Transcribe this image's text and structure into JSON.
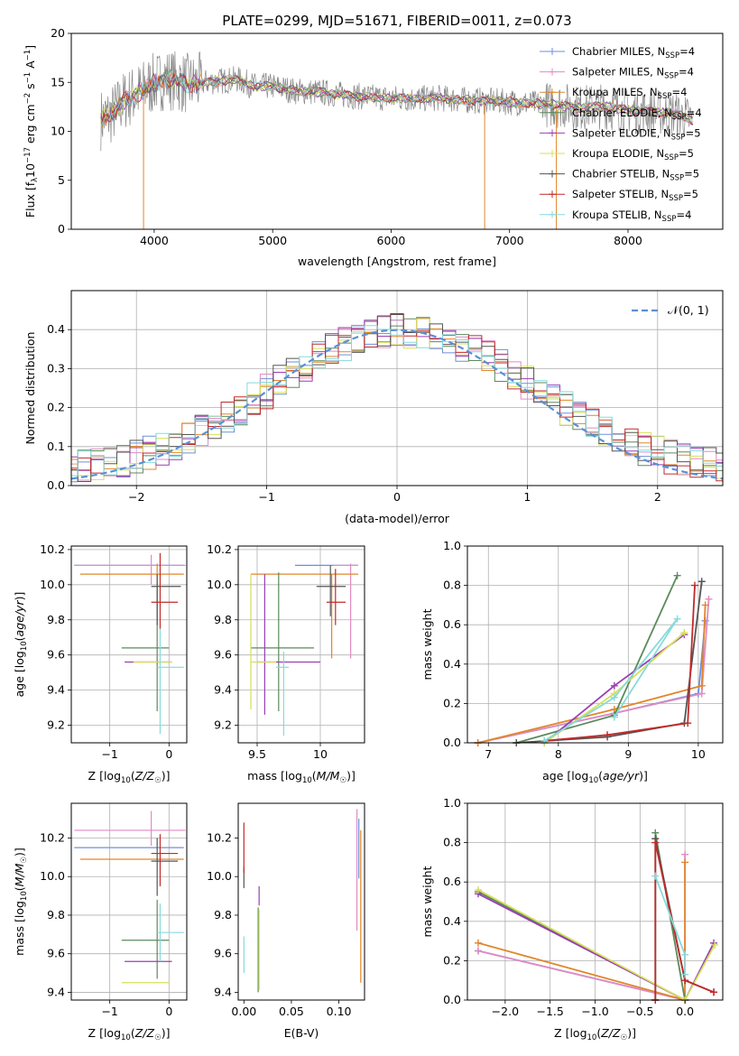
{
  "figure_title": "PLATE=0299, MJD=51671, FIBERID=0011, z=0.073",
  "colors": {
    "Chabrier MILES": "#6d8fdc",
    "Salpeter MILES": "#e28bc3",
    "Kroupa MILES": "#e0872a",
    "Chabrier ELODIE": "#5c8a5c",
    "Salpeter ELODIE": "#9b3fb3",
    "Kroupa ELODIE": "#d6e05a",
    "Chabrier STELIB": "#555555",
    "Salpeter STELIB": "#c12a2a",
    "Kroupa STELIB": "#86dadb",
    "gauss": "#5b8fd6",
    "grid": "#b0b0b0",
    "data": "#888888"
  },
  "chart_data": [
    {
      "id": "spectrum",
      "type": "line",
      "title": "PLATE=0299, MJD=51671, FIBERID=0011, z=0.073",
      "xlabel": "wavelength [Angstrom, rest frame]",
      "ylabel": "Flux [f_λ10^-17 erg cm^-2 s^-1 A^-1]",
      "xlim": [
        3300,
        8800
      ],
      "ylim": [
        0,
        20
      ],
      "xticks": [
        4000,
        5000,
        6000,
        7000,
        8000
      ],
      "yticks": [
        0,
        5,
        10,
        15,
        20
      ],
      "grid": false,
      "legend_position": "top-right",
      "legend": [
        {
          "name": "Chabrier MILES",
          "nssp": "4"
        },
        {
          "name": "Salpeter MILES",
          "nssp": "4"
        },
        {
          "name": "Kroupa MILES",
          "nssp": "4"
        },
        {
          "name": "Chabrier ELODIE",
          "nssp": "4"
        },
        {
          "name": "Salpeter ELODIE",
          "nssp": "5"
        },
        {
          "name": "Kroupa ELODIE",
          "nssp": "5"
        },
        {
          "name": "Chabrier STELIB",
          "nssp": "5"
        },
        {
          "name": "Salpeter STELIB",
          "nssp": "5"
        },
        {
          "name": "Kroupa STELIB",
          "nssp": "4"
        }
      ],
      "continuum": [
        [
          3550,
          11.2
        ],
        [
          3650,
          11.8
        ],
        [
          3750,
          13.2
        ],
        [
          3850,
          13.8
        ],
        [
          3950,
          14.6
        ],
        [
          4100,
          15.4
        ],
        [
          4300,
          14.8
        ],
        [
          4500,
          15.1
        ],
        [
          4700,
          15.3
        ],
        [
          4850,
          14.6
        ],
        [
          5000,
          14.6
        ],
        [
          5200,
          14.1
        ],
        [
          5400,
          14.0
        ],
        [
          5600,
          13.7
        ],
        [
          5800,
          13.5
        ],
        [
          6000,
          13.4
        ],
        [
          6200,
          13.3
        ],
        [
          6400,
          13.4
        ],
        [
          6600,
          13.2
        ],
        [
          6800,
          13.1
        ],
        [
          7000,
          13.0
        ],
        [
          7200,
          12.8
        ],
        [
          7400,
          12.7
        ],
        [
          7600,
          12.4
        ],
        [
          7800,
          12.6
        ],
        [
          8000,
          12.1
        ],
        [
          8200,
          12.0
        ],
        [
          8400,
          11.8
        ],
        [
          8550,
          11.1
        ]
      ],
      "spikes": [
        [
          3910,
          0
        ],
        [
          6790,
          0
        ],
        [
          7395,
          0
        ]
      ]
    },
    {
      "id": "residuals",
      "type": "bar",
      "xlabel": "(data-model)/error",
      "ylabel": "Normed distribution",
      "xlim": [
        -2.5,
        2.5
      ],
      "ylim": [
        0,
        0.5
      ],
      "xticks": [
        -2,
        -1,
        0,
        1,
        2
      ],
      "yticks": [
        0.0,
        0.1,
        0.2,
        0.3,
        0.4
      ],
      "grid": true,
      "legend_position": "top-right",
      "gaussian_label": "𝒩(0, 1)",
      "bin_width": 0.1
    },
    {
      "id": "age-vs-Z",
      "type": "scatter",
      "xlabel": "Z [log10(Z/Z☉)]",
      "ylabel": "age [log10(age/yr)]",
      "xlim": [
        -1.65,
        0.3
      ],
      "ylim": [
        9.1,
        10.22
      ],
      "xticks": [
        -1,
        0
      ],
      "yticks": [
        9.2,
        9.4,
        9.6,
        9.8,
        10.0,
        10.2
      ],
      "grid": true,
      "points": [
        {
          "series": "Chabrier MILES",
          "x": -0.35,
          "y": 10.11,
          "xlo": -1.6,
          "xhi": 0.25,
          "ylo": 10.11,
          "yhi": 10.11
        },
        {
          "series": "Salpeter MILES",
          "x": -0.3,
          "y": 10.11,
          "xlo": -1.6,
          "xhi": 0.28,
          "ylo": 10.0,
          "yhi": 10.17
        },
        {
          "series": "Kroupa MILES",
          "x": -0.2,
          "y": 10.06,
          "xlo": -1.5,
          "xhi": 0.25,
          "ylo": 9.98,
          "yhi": 10.12
        },
        {
          "series": "Chabrier ELODIE",
          "x": -0.2,
          "y": 9.64,
          "xlo": -0.8,
          "xhi": 0.0,
          "ylo": 9.28,
          "yhi": 9.98
        },
        {
          "series": "Salpeter ELODIE",
          "x": -0.2,
          "y": 9.56,
          "xlo": -0.75,
          "xhi": 0.05,
          "ylo": 9.56,
          "yhi": 9.56
        },
        {
          "series": "Kroupa ELODIE",
          "x": -0.15,
          "y": 9.56,
          "xlo": -0.6,
          "xhi": 0.05,
          "ylo": 9.56,
          "yhi": 9.56
        },
        {
          "series": "Chabrier STELIB",
          "x": -0.2,
          "y": 9.99,
          "xlo": -0.3,
          "xhi": 0.2,
          "ylo": 9.77,
          "yhi": 10.06
        },
        {
          "series": "Salpeter STELIB",
          "x": -0.15,
          "y": 9.9,
          "xlo": -0.3,
          "xhi": 0.15,
          "ylo": 9.75,
          "yhi": 10.18
        },
        {
          "series": "Kroupa STELIB",
          "x": -0.15,
          "y": 9.53,
          "xlo": -0.2,
          "xhi": 0.25,
          "ylo": 9.15,
          "yhi": 9.75
        }
      ]
    },
    {
      "id": "age-vs-mass",
      "type": "scatter",
      "xlabel": "mass [log10(M/M☉)]",
      "ylabel": "",
      "xlim": [
        9.35,
        10.35
      ],
      "ylim": [
        9.1,
        10.22
      ],
      "xticks": [
        9.5,
        10.0
      ],
      "yticks": [
        9.2,
        9.4,
        9.6,
        9.8,
        10.0,
        10.2
      ],
      "grid": true,
      "points": [
        {
          "series": "Chabrier MILES",
          "x": 10.15,
          "y": 10.11,
          "xlo": 9.8,
          "xhi": 10.3,
          "ylo": 10.11,
          "yhi": 10.11
        },
        {
          "series": "Salpeter MILES",
          "x": 10.24,
          "y": 10.11,
          "xlo": 10.1,
          "xhi": 10.3,
          "ylo": 9.58,
          "yhi": 10.12
        },
        {
          "series": "Kroupa MILES",
          "x": 10.09,
          "y": 10.06,
          "xlo": 9.45,
          "xhi": 10.3,
          "ylo": 9.58,
          "yhi": 10.06
        },
        {
          "series": "Chabrier ELODIE",
          "x": 9.67,
          "y": 9.64,
          "xlo": 9.45,
          "xhi": 9.95,
          "ylo": 9.28,
          "yhi": 10.07
        },
        {
          "series": "Salpeter ELODIE",
          "x": 9.56,
          "y": 9.56,
          "xlo": 9.5,
          "xhi": 10.0,
          "ylo": 9.26,
          "yhi": 10.06
        },
        {
          "series": "Kroupa ELODIE",
          "x": 9.45,
          "y": 9.56,
          "xlo": 9.45,
          "xhi": 9.65,
          "ylo": 9.29,
          "yhi": 10.06
        },
        {
          "series": "Chabrier STELIB",
          "x": 10.08,
          "y": 9.99,
          "xlo": 9.97,
          "xhi": 10.2,
          "ylo": 9.82,
          "yhi": 10.11
        },
        {
          "series": "Salpeter STELIB",
          "x": 10.12,
          "y": 9.9,
          "xlo": 10.05,
          "xhi": 10.2,
          "ylo": 9.77,
          "yhi": 10.09
        },
        {
          "series": "Kroupa STELIB",
          "x": 9.71,
          "y": 9.53,
          "xlo": 9.65,
          "xhi": 9.75,
          "ylo": 9.14,
          "yhi": 9.62
        }
      ]
    },
    {
      "id": "weight-vs-age",
      "type": "line",
      "xlabel": "age [log10(age/yr)]",
      "ylabel": "mass weight",
      "xlim": [
        6.7,
        10.35
      ],
      "ylim": [
        0,
        1
      ],
      "xticks": [
        7,
        8,
        9,
        10
      ],
      "yticks": [
        0.0,
        0.2,
        0.4,
        0.6,
        0.8,
        1.0
      ],
      "grid": true,
      "series": [
        {
          "name": "Chabrier MILES",
          "pts": [
            [
              6.85,
              0.0
            ],
            [
              8.8,
              0.15
            ],
            [
              10.0,
              0.25
            ],
            [
              10.1,
              0.62
            ]
          ]
        },
        {
          "name": "Salpeter MILES",
          "pts": [
            [
              6.85,
              0.0
            ],
            [
              8.8,
              0.15
            ],
            [
              10.05,
              0.25
            ],
            [
              10.15,
              0.73
            ]
          ]
        },
        {
          "name": "Kroupa MILES",
          "pts": [
            [
              6.85,
              0.0
            ],
            [
              8.8,
              0.17
            ],
            [
              10.05,
              0.29
            ],
            [
              10.1,
              0.7
            ]
          ]
        },
        {
          "name": "Chabrier ELODIE",
          "pts": [
            [
              7.4,
              0.0
            ],
            [
              8.8,
              0.14
            ],
            [
              9.7,
              0.85
            ]
          ]
        },
        {
          "name": "Salpeter ELODIE",
          "pts": [
            [
              7.8,
              0.0
            ],
            [
              8.8,
              0.29
            ],
            [
              9.8,
              0.55
            ]
          ]
        },
        {
          "name": "Kroupa ELODIE",
          "pts": [
            [
              7.8,
              0.0
            ],
            [
              8.8,
              0.25
            ],
            [
              9.8,
              0.56
            ]
          ]
        },
        {
          "name": "Chabrier STELIB",
          "pts": [
            [
              7.4,
              0.0
            ],
            [
              8.7,
              0.03
            ],
            [
              9.8,
              0.1
            ],
            [
              10.05,
              0.82
            ]
          ]
        },
        {
          "name": "Salpeter STELIB",
          "pts": [
            [
              7.8,
              0.01
            ],
            [
              8.7,
              0.04
            ],
            [
              9.85,
              0.1
            ],
            [
              9.95,
              0.8
            ]
          ]
        },
        {
          "name": "Kroupa STELIB",
          "pts": [
            [
              7.8,
              0.01
            ],
            [
              8.8,
              0.23
            ],
            [
              9.7,
              0.63
            ],
            [
              8.8,
              0.13
            ]
          ]
        }
      ]
    },
    {
      "id": "mass-vs-Z",
      "type": "scatter",
      "xlabel": "Z [log10(Z/Z☉)]",
      "ylabel": "mass [log10(M/M☉)]",
      "xlim": [
        -1.65,
        0.3
      ],
      "ylim": [
        9.36,
        10.38
      ],
      "xticks": [
        -1,
        0
      ],
      "yticks": [
        9.4,
        9.6,
        9.8,
        10.0,
        10.2
      ],
      "grid": true,
      "points": [
        {
          "series": "Chabrier MILES",
          "x": -0.35,
          "y": 10.15,
          "xlo": -1.6,
          "xhi": 0.25,
          "ylo": 10.15,
          "yhi": 10.15
        },
        {
          "series": "Salpeter MILES",
          "x": -0.3,
          "y": 10.24,
          "xlo": -1.6,
          "xhi": 0.28,
          "ylo": 10.16,
          "yhi": 10.34
        },
        {
          "series": "Kroupa MILES",
          "x": -0.2,
          "y": 10.09,
          "xlo": -1.5,
          "xhi": 0.25,
          "ylo": 10.09,
          "yhi": 10.09
        },
        {
          "series": "Chabrier ELODIE",
          "x": -0.2,
          "y": 9.67,
          "xlo": -0.8,
          "xhi": 0.0,
          "ylo": 9.47,
          "yhi": 9.88
        },
        {
          "series": "Salpeter ELODIE",
          "x": -0.2,
          "y": 9.56,
          "xlo": -0.75,
          "xhi": 0.05,
          "ylo": 9.56,
          "yhi": 9.56
        },
        {
          "series": "Kroupa ELODIE",
          "x": -0.15,
          "y": 9.45,
          "xlo": -0.8,
          "xhi": 0.0,
          "ylo": 9.45,
          "yhi": 9.45
        },
        {
          "series": "Chabrier STELIB",
          "x": -0.2,
          "y": 10.08,
          "xlo": -0.3,
          "xhi": 0.15,
          "ylo": 9.9,
          "yhi": 10.2
        },
        {
          "series": "Salpeter STELIB",
          "x": -0.15,
          "y": 10.12,
          "xlo": -0.3,
          "xhi": 0.15,
          "ylo": 9.95,
          "yhi": 10.22
        },
        {
          "series": "Kroupa STELIB",
          "x": -0.15,
          "y": 9.71,
          "xlo": -0.2,
          "xhi": 0.25,
          "ylo": 9.56,
          "yhi": 9.86
        }
      ]
    },
    {
      "id": "mass-vs-EBV",
      "type": "scatter",
      "xlabel": "E(B-V)",
      "ylabel": "",
      "xlim": [
        -0.006,
        0.127
      ],
      "ylim": [
        9.36,
        10.38
      ],
      "xticks": [
        0.0,
        0.05,
        0.1
      ],
      "xtick_labels": [
        "0.00",
        "0.05",
        "0.10"
      ],
      "yticks": [
        9.4,
        9.6,
        9.8,
        10.0,
        10.2
      ],
      "grid": false,
      "points": [
        {
          "series": "Chabrier MILES",
          "x": 0.121,
          "y": 10.15,
          "ylo": 9.99,
          "yhi": 10.3
        },
        {
          "series": "Salpeter MILES",
          "x": 0.119,
          "y": 10.24,
          "ylo": 9.72,
          "yhi": 10.35
        },
        {
          "series": "Kroupa MILES",
          "x": 0.123,
          "y": 10.09,
          "ylo": 9.45,
          "yhi": 10.24
        },
        {
          "series": "Chabrier ELODIE",
          "x": 0.015,
          "y": 9.67,
          "ylo": 9.4,
          "yhi": 9.84
        },
        {
          "series": "Salpeter ELODIE",
          "x": 0.016,
          "y": 9.56,
          "ylo": 9.85,
          "yhi": 9.95
        },
        {
          "series": "Kroupa ELODIE",
          "x": 0.016,
          "y": 9.45,
          "ylo": 9.41,
          "yhi": 9.83
        },
        {
          "series": "Chabrier STELIB",
          "x": 0.0,
          "y": 10.08,
          "ylo": 9.94,
          "yhi": 10.05
        },
        {
          "series": "Salpeter STELIB",
          "x": 0.0,
          "y": 10.12,
          "ylo": 10.02,
          "yhi": 10.28
        },
        {
          "series": "Kroupa STELIB",
          "x": 0.0,
          "y": 9.71,
          "ylo": 9.5,
          "yhi": 9.69
        }
      ]
    },
    {
      "id": "weight-vs-Z",
      "type": "line",
      "xlabel": "Z [log10(Z/Z☉)]",
      "ylabel": "mass weight",
      "xlim": [
        -2.42,
        0.42
      ],
      "ylim": [
        0,
        1
      ],
      "xticks": [
        -2.0,
        -1.5,
        -1.0,
        -0.5,
        0.0
      ],
      "xtick_labels": [
        "−2.0",
        "−1.5",
        "−1.0",
        "−0.5",
        "0.0"
      ],
      "yticks": [
        0.0,
        0.2,
        0.4,
        0.6,
        0.8,
        1.0
      ],
      "grid": true,
      "series": [
        {
          "name": "Chabrier MILES",
          "pts": [
            [
              -2.3,
              0.25
            ],
            [
              0.0,
              0.0
            ]
          ]
        },
        {
          "name": "Salpeter MILES",
          "pts": [
            [
              -2.3,
              0.25
            ],
            [
              0.0,
              0.0
            ],
            [
              0.0,
              0.74
            ]
          ]
        },
        {
          "name": "Kroupa MILES",
          "pts": [
            [
              -2.3,
              0.29
            ],
            [
              0.0,
              0.0
            ],
            [
              0.0,
              0.7
            ]
          ]
        },
        {
          "name": "Chabrier ELODIE",
          "pts": [
            [
              -2.3,
              0.55
            ],
            [
              0.0,
              0.0
            ],
            [
              -0.33,
              0.85
            ],
            [
              0.0,
              0.0
            ]
          ]
        },
        {
          "name": "Salpeter ELODIE",
          "pts": [
            [
              -2.3,
              0.54
            ],
            [
              0.0,
              0.0
            ],
            [
              0.32,
              0.29
            ]
          ]
        },
        {
          "name": "Kroupa ELODIE",
          "pts": [
            [
              -2.3,
              0.56
            ],
            [
              0.0,
              0.0
            ],
            [
              0.33,
              0.28
            ]
          ]
        },
        {
          "name": "Chabrier STELIB",
          "pts": [
            [
              -0.33,
              0.0
            ],
            [
              -0.33,
              0.82
            ],
            [
              0.0,
              0.1
            ],
            [
              0.32,
              0.04
            ]
          ]
        },
        {
          "name": "Salpeter STELIB",
          "pts": [
            [
              -0.33,
              0.0
            ],
            [
              -0.33,
              0.8
            ],
            [
              0.0,
              0.1
            ],
            [
              0.32,
              0.04
            ]
          ]
        },
        {
          "name": "Kroupa STELIB",
          "pts": [
            [
              -0.33,
              0.63
            ],
            [
              0.0,
              0.23
            ],
            [
              0.0,
              0.13
            ]
          ]
        }
      ]
    }
  ]
}
